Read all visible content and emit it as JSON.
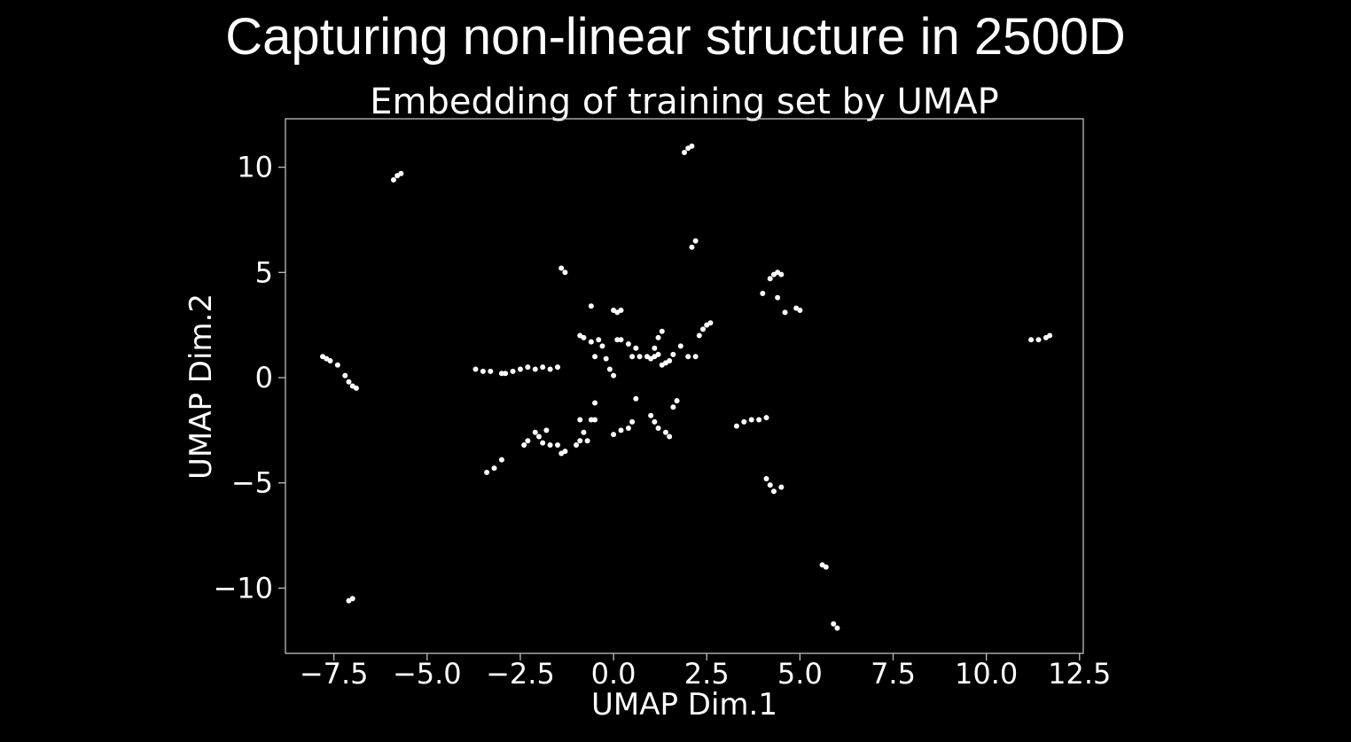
{
  "slide": {
    "title": "Capturing non-linear structure in 2500D"
  },
  "chart_data": {
    "type": "scatter",
    "title": "Embedding of training set by UMAP",
    "xlabel": "UMAP Dim.1",
    "ylabel": "UMAP Dim.2",
    "xlim": [
      -8.8,
      12.6
    ],
    "ylim": [
      -13.1,
      12.3
    ],
    "xticks": [
      -7.5,
      -5.0,
      -2.5,
      0.0,
      2.5,
      5.0,
      7.5,
      10.0,
      12.5
    ],
    "xtick_labels": [
      "−7.5",
      "−5.0",
      "−2.5",
      "0.0",
      "2.5",
      "5.0",
      "7.5",
      "10.0",
      "12.5"
    ],
    "yticks": [
      10,
      5,
      0,
      -5,
      -10
    ],
    "ytick_labels": [
      "10",
      "5",
      "0",
      "−5",
      "−10"
    ],
    "grid": false,
    "colors": {
      "background": "#000000",
      "marker": "#ffffff",
      "axes": "#bfbfbf"
    },
    "x": [
      -7.8,
      -7.7,
      -7.6,
      -7.4,
      -7.2,
      -7.1,
      -7.0,
      -6.9,
      -5.9,
      -5.8,
      -5.7,
      -7.1,
      -7.0,
      1.9,
      2.0,
      2.1,
      2.1,
      2.2,
      -1.4,
      -1.3,
      -0.6,
      0.0,
      0.1,
      0.2,
      4.0,
      4.2,
      4.3,
      4.4,
      4.5,
      4.4,
      4.6,
      4.9,
      5.0,
      -3.7,
      -3.5,
      -3.3,
      -3.0,
      -2.9,
      -2.7,
      -2.5,
      -2.3,
      -2.1,
      -1.9,
      -1.7,
      -1.5,
      -0.9,
      -0.8,
      -0.6,
      -0.4,
      -0.3,
      -0.5,
      -0.2,
      -0.1,
      0.0,
      0.1,
      0.2,
      0.4,
      0.6,
      0.5,
      0.7,
      0.9,
      1.0,
      1.1,
      1.2,
      1.3,
      1.4,
      1.5,
      1.6,
      1.8,
      2.0,
      2.2,
      2.3,
      2.4,
      2.5,
      2.6,
      1.3,
      1.2,
      1.1,
      -0.7,
      -0.6,
      -0.5,
      -0.9,
      -0.8,
      -0.9,
      -1.0,
      -1.3,
      -1.4,
      -1.5,
      -1.7,
      -2.0,
      -2.1,
      -2.3,
      -2.4,
      -3.0,
      -3.2,
      -3.4,
      -1.8,
      -1.9,
      -0.5,
      0.0,
      0.2,
      0.4,
      0.5,
      0.6,
      1.0,
      1.1,
      1.2,
      1.4,
      1.5,
      1.6,
      1.7,
      3.3,
      3.5,
      3.7,
      3.9,
      4.1,
      4.1,
      4.2,
      4.3,
      4.5,
      5.6,
      5.7,
      5.9,
      6.0,
      11.2,
      11.4,
      11.6,
      11.7
    ],
    "y": [
      1.0,
      0.9,
      0.8,
      0.6,
      0.1,
      -0.2,
      -0.4,
      -0.5,
      9.4,
      9.6,
      9.7,
      -10.6,
      -10.5,
      10.7,
      10.9,
      11.0,
      6.2,
      6.5,
      5.2,
      5.0,
      3.4,
      3.2,
      3.1,
      3.2,
      4.0,
      4.7,
      4.9,
      5.0,
      4.9,
      3.8,
      3.1,
      3.3,
      3.2,
      0.4,
      0.3,
      0.3,
      0.2,
      0.2,
      0.3,
      0.4,
      0.5,
      0.4,
      0.5,
      0.4,
      0.5,
      2.0,
      1.9,
      1.7,
      1.8,
      1.5,
      1.0,
      0.9,
      0.4,
      0.1,
      1.8,
      1.8,
      1.6,
      1.4,
      1.0,
      1.0,
      1.0,
      0.9,
      1.0,
      1.9,
      2.2,
      0.7,
      0.8,
      1.1,
      1.5,
      1.0,
      1.0,
      2.0,
      2.3,
      2.5,
      2.6,
      0.6,
      1.1,
      1.4,
      -3.0,
      -2.0,
      -1.2,
      -2.0,
      -2.6,
      -3.0,
      -3.2,
      -3.5,
      -3.6,
      -3.2,
      -3.2,
      -2.8,
      -2.6,
      -3.0,
      -3.2,
      -3.9,
      -4.3,
      -4.5,
      -2.5,
      -3.1,
      -2.0,
      -2.7,
      -2.5,
      -2.4,
      -2.1,
      -1.0,
      -1.8,
      -2.1,
      -2.4,
      -2.6,
      -2.8,
      -1.4,
      -1.1,
      -2.3,
      -2.1,
      -2.0,
      -2.0,
      -1.9,
      -4.8,
      -5.1,
      -5.4,
      -5.2,
      -8.9,
      -9.0,
      -11.7,
      -11.9,
      1.8,
      1.8,
      1.9,
      2.0
    ]
  }
}
